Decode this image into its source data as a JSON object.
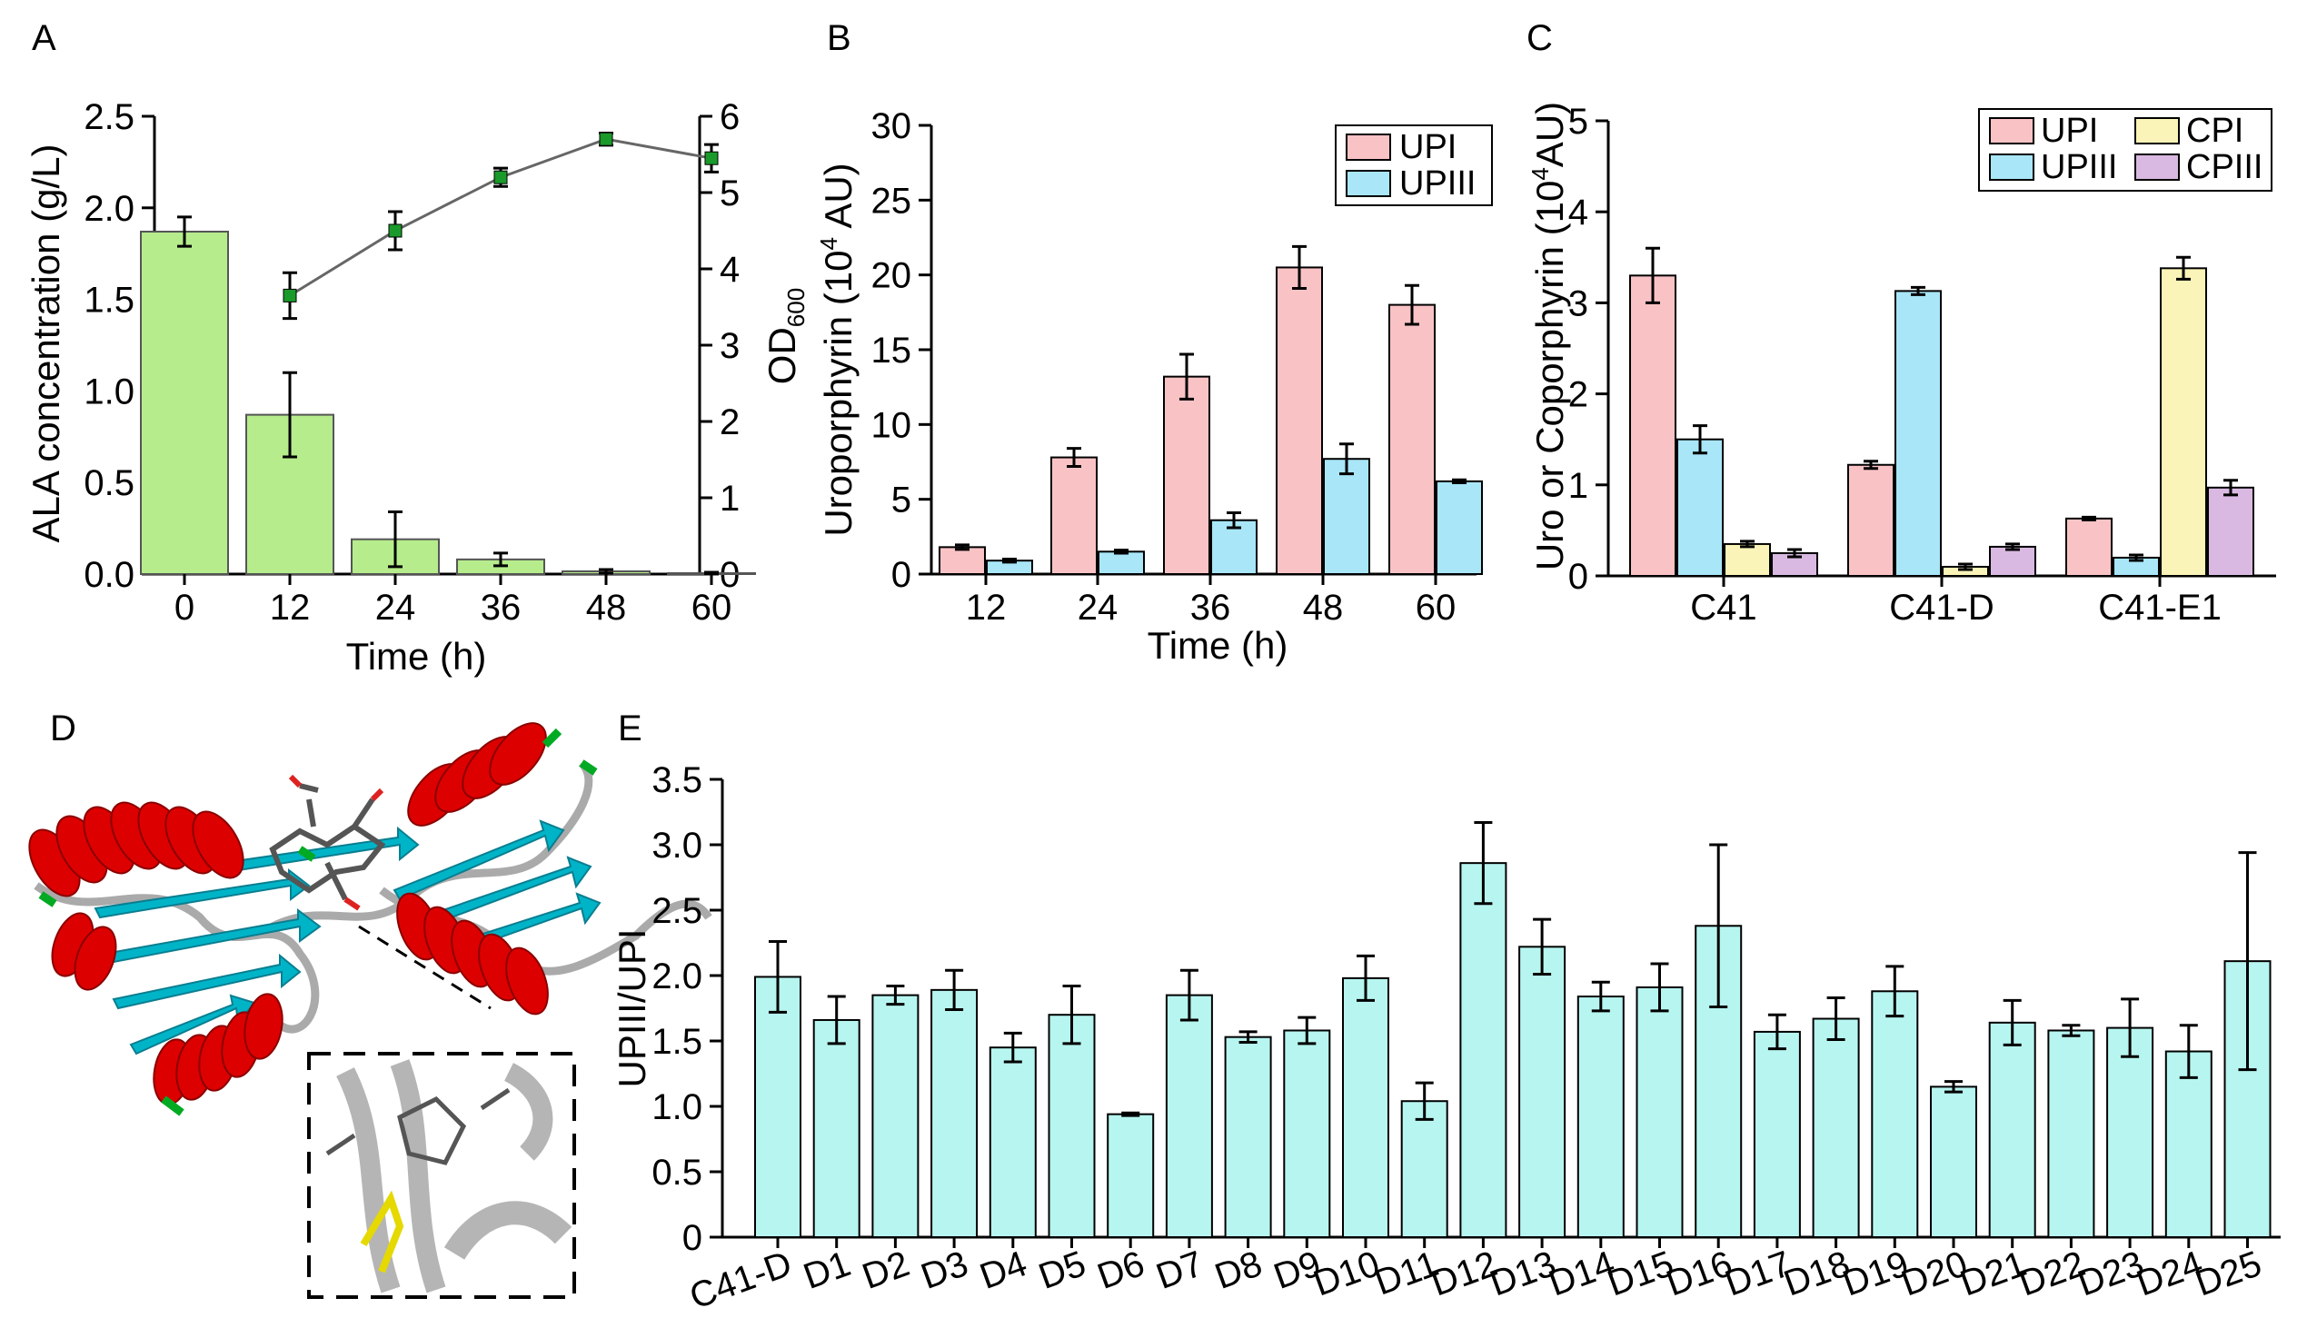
{
  "colors": {
    "green_bar": "#b6ec8c",
    "pink_bar": "#f9c3c6",
    "blue_bar": "#a8e6f8",
    "yellow_bar": "#fbf4b8",
    "purple_bar": "#d9b9e1",
    "cyan_bar": "#b7f5f0",
    "od_line": "#666666",
    "od_marker": "#1a9a2a",
    "helix": "#dd0000",
    "sheet": "#00b4c8",
    "coil": "#aaaaaa",
    "turn": "#00aa22"
  },
  "chart_data": [
    {
      "panel": "A",
      "type": "bar",
      "categories": [
        "0",
        "12",
        "24",
        "36",
        "48",
        "60"
      ],
      "series": [
        {
          "name": "ALA concentration",
          "type": "bar",
          "axis": "left",
          "values": [
            1.87,
            0.87,
            0.19,
            0.08,
            0.015,
            0.005
          ],
          "errors": [
            0.08,
            0.23,
            0.15,
            0.035,
            0.01,
            0.005
          ]
        },
        {
          "name": "OD600",
          "type": "line",
          "axis": "right",
          "x": [
            "12",
            "24",
            "36",
            "48",
            "60"
          ],
          "values": [
            3.65,
            4.5,
            5.2,
            5.7,
            5.45
          ],
          "errors": [
            0.3,
            0.25,
            0.12,
            0.08,
            0.18
          ]
        }
      ],
      "xlabel": "Time (h)",
      "ylabel": "ALA concentration (g/L)",
      "ylabel_right_main": "OD",
      "ylabel_right_sub": "600",
      "ylim": [
        0,
        2.5
      ],
      "yticks": [
        "0.0",
        "0.5",
        "1.0",
        "1.5",
        "2.0",
        "2.5"
      ],
      "ylim_right": [
        0,
        6
      ],
      "yticks_right": [
        "0",
        "1",
        "2",
        "3",
        "4",
        "5",
        "6"
      ]
    },
    {
      "panel": "B",
      "type": "bar",
      "categories": [
        "12",
        "24",
        "36",
        "48",
        "60"
      ],
      "series": [
        {
          "name": "UPI",
          "values": [
            1.8,
            7.8,
            13.2,
            20.5,
            18.0
          ],
          "errors": [
            0.15,
            0.6,
            1.5,
            1.4,
            1.3
          ]
        },
        {
          "name": "UPIII",
          "values": [
            0.9,
            1.5,
            3.6,
            7.7,
            6.2
          ],
          "errors": [
            0.1,
            0.1,
            0.5,
            1.0,
            0.1
          ]
        }
      ],
      "xlabel": "Time (h)",
      "ylabel_pre": "Uroporphyrin (10",
      "ylabel_sup": "4",
      "ylabel_post": " AU)",
      "ylim": [
        0,
        30
      ],
      "yticks": [
        "0",
        "5",
        "10",
        "15",
        "20",
        "25",
        "30"
      ]
    },
    {
      "panel": "C",
      "type": "bar",
      "categories": [
        "C41",
        "C41-D",
        "C41-E1"
      ],
      "series": [
        {
          "name": "UPI",
          "values": [
            3.3,
            1.22,
            0.63
          ],
          "errors": [
            0.3,
            0.04,
            0.015
          ]
        },
        {
          "name": "UPIII",
          "values": [
            1.5,
            3.13,
            0.2
          ],
          "errors": [
            0.15,
            0.04,
            0.03
          ]
        },
        {
          "name": "CPI",
          "values": [
            0.35,
            0.1,
            3.38
          ],
          "errors": [
            0.03,
            0.03,
            0.12
          ]
        },
        {
          "name": "CPIII",
          "values": [
            0.25,
            0.32,
            0.97
          ],
          "errors": [
            0.04,
            0.03,
            0.08
          ]
        }
      ],
      "ylabel_pre": "Uro or Coporphyrin (10",
      "ylabel_sup": "4",
      "ylabel_post": "AU)",
      "ylim": [
        0,
        5
      ],
      "yticks": [
        "0",
        "1",
        "2",
        "3",
        "4",
        "5"
      ]
    },
    {
      "panel": "E",
      "type": "bar",
      "categories": [
        "C41-D",
        "D1",
        "D2",
        "D3",
        "D4",
        "D5",
        "D6",
        "D7",
        "D8",
        "D9",
        "D10",
        "D11",
        "D12",
        "D13",
        "D14",
        "D15",
        "D16",
        "D17",
        "D18",
        "D19",
        "D20",
        "D21",
        "D22",
        "D23",
        "D24",
        "D25"
      ],
      "values": [
        1.99,
        1.66,
        1.85,
        1.89,
        1.45,
        1.7,
        0.94,
        1.85,
        1.53,
        1.58,
        1.98,
        1.04,
        2.86,
        2.22,
        1.84,
        1.91,
        2.38,
        1.57,
        1.67,
        1.88,
        1.15,
        1.64,
        1.58,
        1.6,
        1.42,
        2.11
      ],
      "errors": [
        0.27,
        0.18,
        0.07,
        0.15,
        0.11,
        0.22,
        0.01,
        0.19,
        0.04,
        0.1,
        0.17,
        0.14,
        0.31,
        0.21,
        0.11,
        0.18,
        0.62,
        0.13,
        0.16,
        0.19,
        0.04,
        0.17,
        0.04,
        0.22,
        0.2,
        0.83
      ],
      "ylabel": "UPIII/UPI",
      "ylim": [
        0,
        3.5
      ],
      "yticks": [
        "0",
        "0.5",
        "1.0",
        "1.5",
        "2.0",
        "2.5",
        "3.0",
        "3.5"
      ]
    }
  ],
  "panels": {
    "a": "A",
    "b": "B",
    "c": "C",
    "d": "D",
    "e": "E"
  }
}
